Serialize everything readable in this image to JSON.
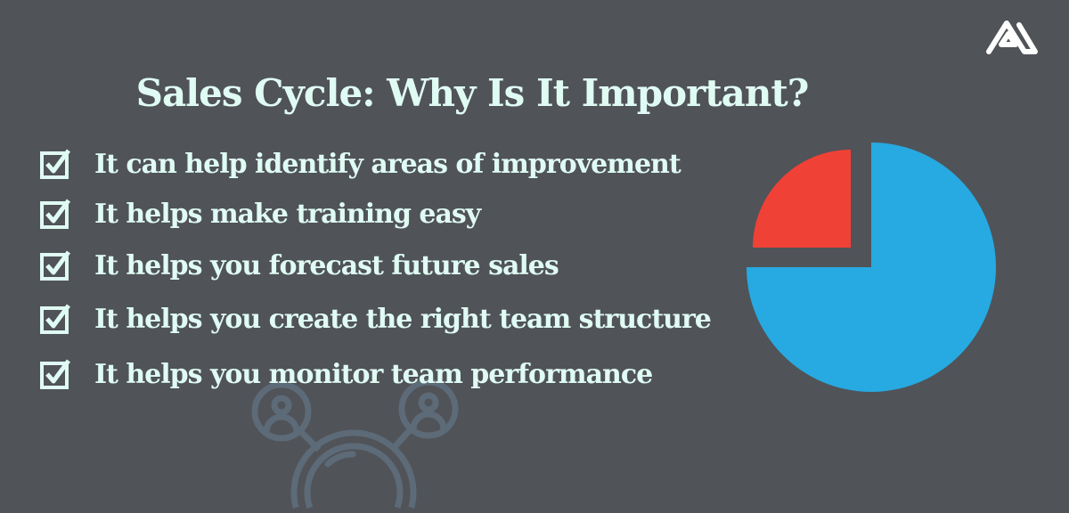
{
  "title": "Sales Cycle: Why Is It Important?",
  "items": [
    {
      "label": "It can help identify areas of improvement",
      "icon": "checkbox-checked-icon"
    },
    {
      "label": "It helps make training easy",
      "icon": "checkbox-checked-icon"
    },
    {
      "label": "It helps you forecast future sales",
      "icon": "checkbox-checked-icon"
    },
    {
      "label": "It helps you create the right team structure",
      "icon": "checkbox-checked-icon"
    },
    {
      "label": "It helps you monitor team performance",
      "icon": "checkbox-checked-icon"
    }
  ],
  "pie": {
    "slices": [
      {
        "value": 75,
        "color": "#27a9e1"
      },
      {
        "value": 25,
        "color": "#ef4136",
        "exploded": true
      }
    ]
  },
  "colors": {
    "background": "#505358",
    "text": "#dffbf3",
    "icon_watermark": "#5d6a77",
    "logo": "#ffffff"
  }
}
